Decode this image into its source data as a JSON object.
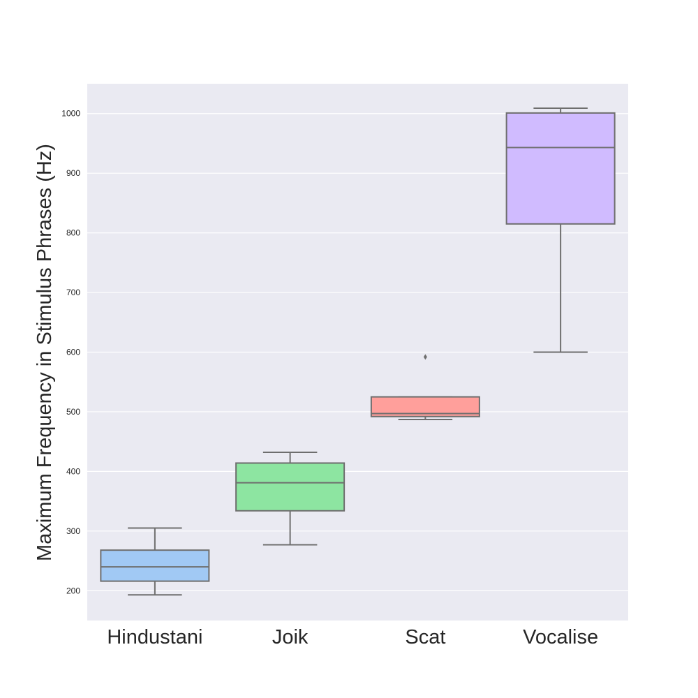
{
  "chart_data": {
    "type": "box",
    "title": "",
    "xlabel": "",
    "ylabel": "Maximum Frequency in Stimulus Phrases (Hz)",
    "ylim": [
      150,
      1050
    ],
    "yticks": [
      200,
      300,
      400,
      500,
      600,
      700,
      800,
      900,
      1000
    ],
    "grid": true,
    "categories": [
      "Hindustani",
      "Joik",
      "Scat",
      "Vocalise"
    ],
    "series": [
      {
        "category": "Hindustani",
        "whisker_low": 193,
        "q1": 216,
        "median": 240,
        "q3": 268,
        "whisker_high": 305,
        "outliers": [],
        "color": "#a1c9f4"
      },
      {
        "category": "Joik",
        "whisker_low": 277,
        "q1": 334,
        "median": 381,
        "q3": 414,
        "whisker_high": 432,
        "outliers": [],
        "color": "#8de5a1"
      },
      {
        "category": "Scat",
        "whisker_low": 487,
        "q1": 492,
        "median": 497,
        "q3": 525,
        "whisker_high": 525,
        "outliers": [
          592
        ],
        "color": "#ff9f9b"
      },
      {
        "category": "Vocalise",
        "whisker_low": 600,
        "q1": 815,
        "median": 943,
        "q3": 1001,
        "whisker_high": 1009,
        "outliers": [],
        "color": "#d0bbff"
      }
    ],
    "colors": {
      "plot_background": "#eaeaf2",
      "grid": "#ffffff",
      "box_edge": "#6e6e6e"
    }
  }
}
